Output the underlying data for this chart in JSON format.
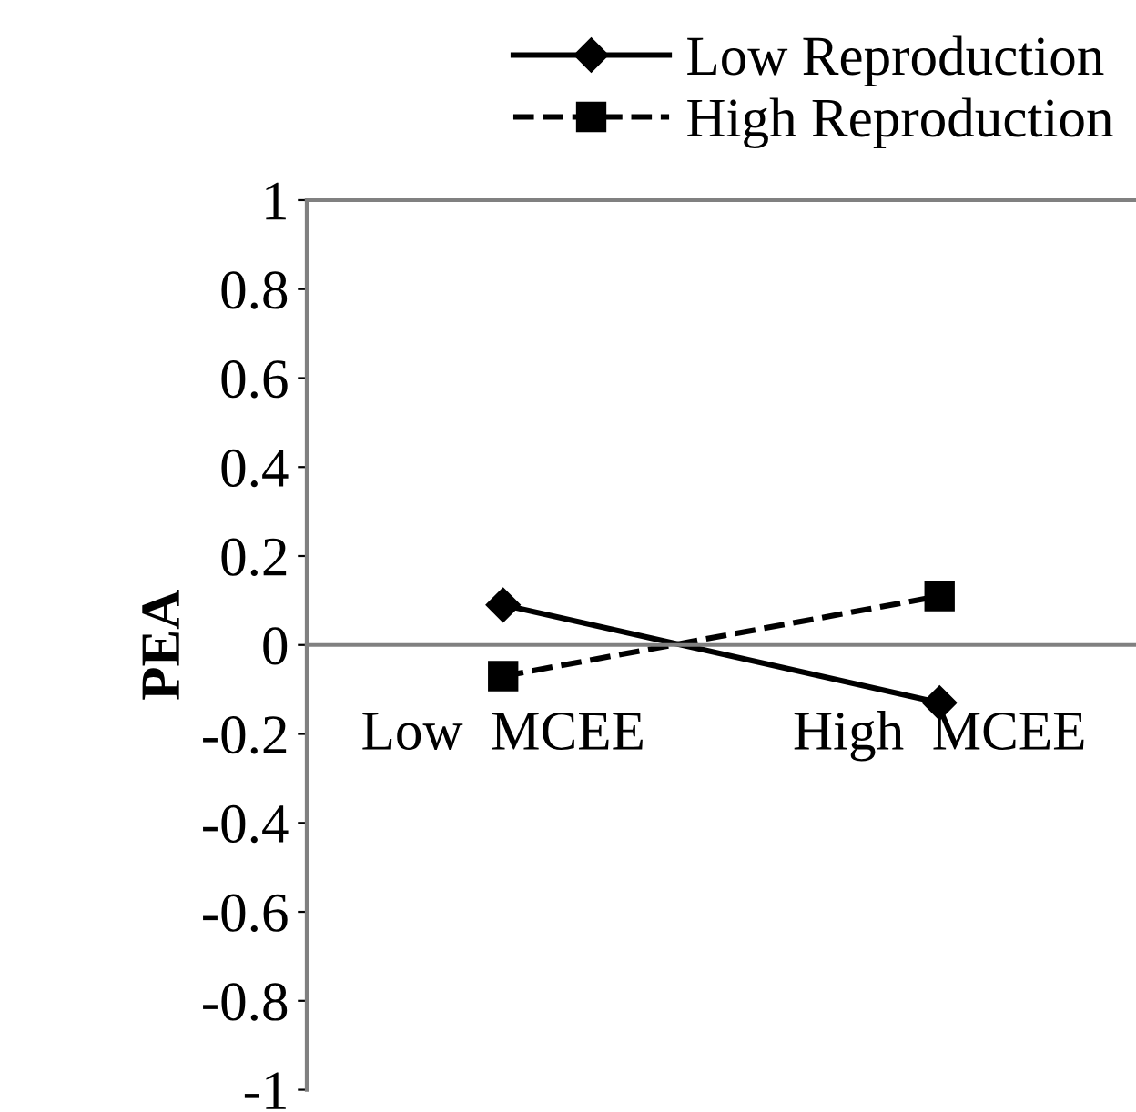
{
  "chart_data": {
    "type": "line",
    "ylabel": "PEA",
    "categories": [
      "Low  MCEE",
      "High  MCEE"
    ],
    "series": [
      {
        "name": "Low Reproduction",
        "color": "#000000",
        "values": [
          0.09,
          -0.13
        ],
        "marker": "diamond",
        "line_style": "solid"
      },
      {
        "name": "High Reproduction",
        "color": "#000000",
        "values": [
          -0.07,
          0.11
        ],
        "marker": "square",
        "line_style": "dashed"
      }
    ],
    "ylim": [
      -1,
      1
    ],
    "yticks": [
      -1,
      -0.8,
      -0.6,
      -0.4,
      -0.2,
      0,
      0.2,
      0.4,
      0.6,
      0.8,
      1
    ],
    "grid": false,
    "legend": "top right"
  }
}
